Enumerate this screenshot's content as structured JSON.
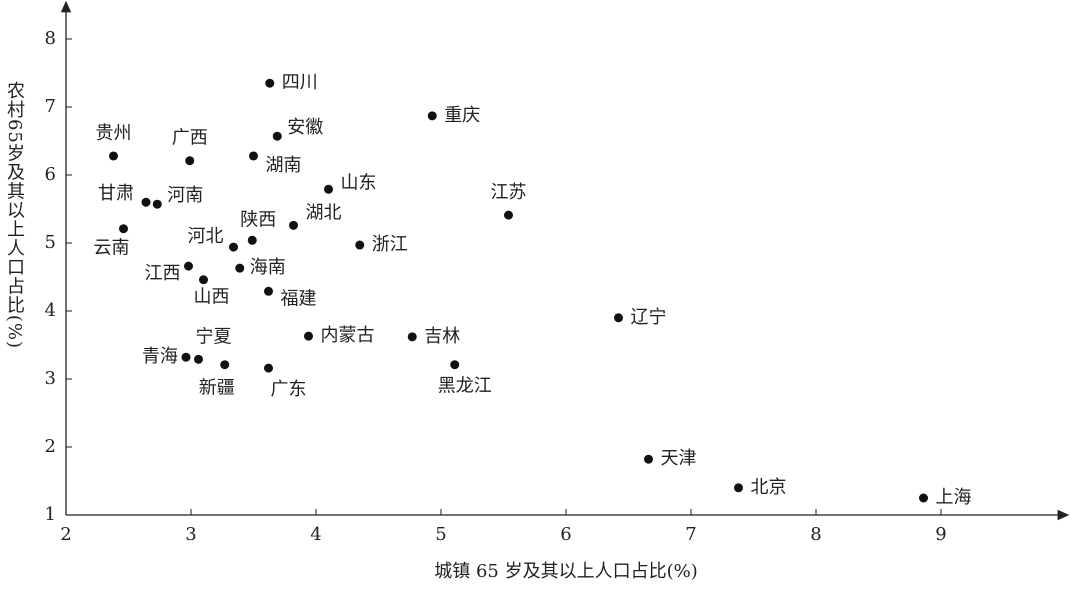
{
  "chart_data": {
    "type": "scatter",
    "x_label": "城镇 65 岁及其以上人口占比(%)",
    "y_label": "农村65岁及其以上人口占比(%)",
    "point_labels": [
      "四川",
      "重庆",
      "安徽",
      "贵州",
      "广西",
      "湖南",
      "山东",
      "甘肃",
      "河南",
      "江苏",
      "云南",
      "湖北",
      "陕西",
      "河北",
      "浙江",
      "江西",
      "海南",
      "山西",
      "福建",
      "辽宁",
      "内蒙古",
      "吉林",
      "青海",
      "宁夏",
      "新疆",
      "广东",
      "黑龙江",
      "天津",
      "北京",
      "上海"
    ],
    "x": [
      3.63,
      4.93,
      3.69,
      2.38,
      2.99,
      3.5,
      4.1,
      2.64,
      2.73,
      5.54,
      2.46,
      3.82,
      3.49,
      3.34,
      4.35,
      2.98,
      3.39,
      3.1,
      3.62,
      6.42,
      3.94,
      4.77,
      2.96,
      3.06,
      3.27,
      3.62,
      5.11,
      6.66,
      7.38,
      8.86
    ],
    "values": [
      7.35,
      6.87,
      6.57,
      6.28,
      6.21,
      6.28,
      5.79,
      5.6,
      5.57,
      5.41,
      5.21,
      5.26,
      5.04,
      4.94,
      4.97,
      4.66,
      4.63,
      4.46,
      4.29,
      3.9,
      3.63,
      3.62,
      3.32,
      3.29,
      3.21,
      3.16,
      3.21,
      1.82,
      1.4,
      1.25
    ],
    "color": "#111111",
    "xlim": [
      2,
      10
    ],
    "ylim": [
      1,
      8.5
    ],
    "xticks": [
      2,
      3,
      4,
      5,
      6,
      7,
      8,
      9
    ],
    "yticks": [
      1,
      2,
      3,
      4,
      5,
      6,
      7,
      8
    ]
  }
}
